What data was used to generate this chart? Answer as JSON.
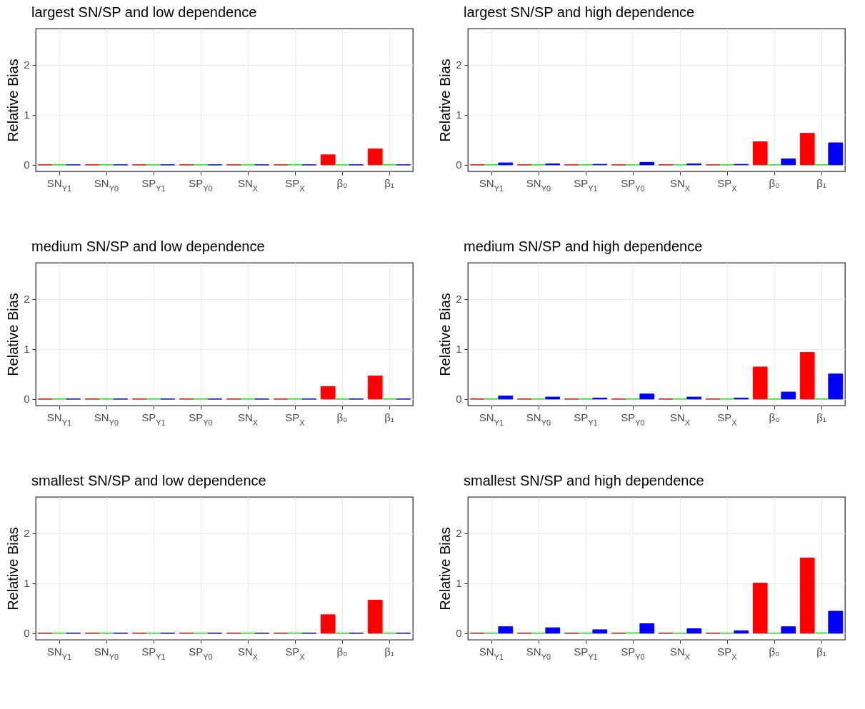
{
  "chart_data": [
    {
      "type": "bar",
      "title": "largest SN/SP and low dependence",
      "ylabel": "Relative Bias",
      "categories": [
        "SN$_{Y1}$",
        "SN$_{Y0}$",
        "SP$_{Y1}$",
        "SP$_{Y0}$",
        "SN$_{X}$",
        "SP$_{X}$",
        "β₀",
        "β₁"
      ],
      "ylim": [
        -0.13,
        2.72
      ],
      "yticks": [
        0,
        1,
        2
      ],
      "grid": true,
      "legend": false,
      "series": [
        {
          "color": "#ff0000",
          "values": [
            0,
            0,
            0,
            0,
            0,
            0,
            0.2,
            0.32
          ]
        },
        {
          "color": "#00ff00",
          "values": [
            0,
            0,
            0,
            0,
            0,
            0,
            0,
            0
          ]
        },
        {
          "color": "#0000ff",
          "values": [
            0,
            0,
            0,
            0,
            0,
            0,
            0,
            0
          ]
        }
      ]
    },
    {
      "type": "bar",
      "title": "largest SN/SP and high dependence",
      "ylabel": "Relative Bias",
      "categories": [
        "SN$_{Y1}$",
        "SN$_{Y0}$",
        "SP$_{Y1}$",
        "SP$_{Y0}$",
        "SN$_{X}$",
        "SP$_{X}$",
        "β₀",
        "β₁"
      ],
      "ylim": [
        -0.13,
        2.72
      ],
      "yticks": [
        0,
        1,
        2
      ],
      "grid": true,
      "legend": false,
      "series": [
        {
          "color": "#ff0000",
          "values": [
            0,
            0,
            0,
            0,
            0,
            0,
            0.46,
            0.63
          ]
        },
        {
          "color": "#00ff00",
          "values": [
            0,
            0,
            0,
            0,
            0,
            0,
            0,
            0
          ]
        },
        {
          "color": "#0000ff",
          "values": [
            0.04,
            0.02,
            0.01,
            0.05,
            0.02,
            0.01,
            0.12,
            0.44
          ]
        }
      ]
    },
    {
      "type": "bar",
      "title": "medium SN/SP and low dependence",
      "ylabel": "Relative Bias",
      "categories": [
        "SN$_{Y1}$",
        "SN$_{Y0}$",
        "SP$_{Y1}$",
        "SP$_{Y0}$",
        "SN$_{X}$",
        "SP$_{X}$",
        "β₀",
        "β₁"
      ],
      "ylim": [
        -0.13,
        2.72
      ],
      "yticks": [
        0,
        1,
        2
      ],
      "grid": true,
      "legend": false,
      "series": [
        {
          "color": "#ff0000",
          "values": [
            0,
            0,
            0,
            0,
            0,
            0,
            0.25,
            0.46
          ]
        },
        {
          "color": "#00ff00",
          "values": [
            0,
            0,
            0,
            0,
            0,
            0,
            0,
            0
          ]
        },
        {
          "color": "#0000ff",
          "values": [
            0,
            0,
            0,
            0,
            0,
            0,
            0,
            0
          ]
        }
      ]
    },
    {
      "type": "bar",
      "title": "medium SN/SP and high dependence",
      "ylabel": "Relative Bias",
      "categories": [
        "SN$_{Y1}$",
        "SN$_{Y0}$",
        "SP$_{Y1}$",
        "SP$_{Y0}$",
        "SN$_{X}$",
        "SP$_{X}$",
        "β₀",
        "β₁"
      ],
      "ylim": [
        -0.13,
        2.72
      ],
      "yticks": [
        0,
        1,
        2
      ],
      "grid": true,
      "legend": false,
      "series": [
        {
          "color": "#ff0000",
          "values": [
            0,
            0,
            0,
            0,
            0,
            0,
            0.64,
            0.93
          ]
        },
        {
          "color": "#00ff00",
          "values": [
            0,
            0,
            0,
            0,
            0,
            0,
            0,
            0
          ]
        },
        {
          "color": "#0000ff",
          "values": [
            0.06,
            0.04,
            0.02,
            0.1,
            0.04,
            0.02,
            0.14,
            0.5
          ]
        }
      ]
    },
    {
      "type": "bar",
      "title": "smallest SN/SP and low dependence",
      "ylabel": "Relative Bias",
      "categories": [
        "SN$_{Y1}$",
        "SN$_{Y0}$",
        "SP$_{Y1}$",
        "SP$_{Y0}$",
        "SN$_{X}$",
        "SP$_{X}$",
        "β₀",
        "β₁"
      ],
      "ylim": [
        -0.13,
        2.72
      ],
      "yticks": [
        0,
        1,
        2
      ],
      "grid": true,
      "legend": false,
      "series": [
        {
          "color": "#ff0000",
          "values": [
            0,
            0,
            0,
            0,
            0,
            0,
            0.37,
            0.66
          ]
        },
        {
          "color": "#00ff00",
          "values": [
            0,
            0,
            0,
            0,
            0,
            0,
            0,
            0
          ]
        },
        {
          "color": "#0000ff",
          "values": [
            0,
            0,
            0,
            0,
            0,
            0,
            0,
            0
          ]
        }
      ]
    },
    {
      "type": "bar",
      "title": "smallest SN/SP and high dependence",
      "ylabel": "Relative Bias",
      "categories": [
        "SN$_{Y1}$",
        "SN$_{Y0}$",
        "SP$_{Y1}$",
        "SP$_{Y0}$",
        "SN$_{X}$",
        "SP$_{X}$",
        "β₀",
        "β₁"
      ],
      "ylim": [
        -0.13,
        2.72
      ],
      "yticks": [
        0,
        1,
        2
      ],
      "grid": true,
      "legend": false,
      "series": [
        {
          "color": "#ff0000",
          "values": [
            0,
            0,
            0,
            0,
            0,
            0,
            1.0,
            1.5
          ]
        },
        {
          "color": "#00ff00",
          "values": [
            0,
            0,
            0,
            0.01,
            0,
            0,
            0,
            0.01
          ]
        },
        {
          "color": "#0000ff",
          "values": [
            0.13,
            0.11,
            0.07,
            0.19,
            0.09,
            0.05,
            0.13,
            0.44
          ]
        }
      ]
    }
  ]
}
